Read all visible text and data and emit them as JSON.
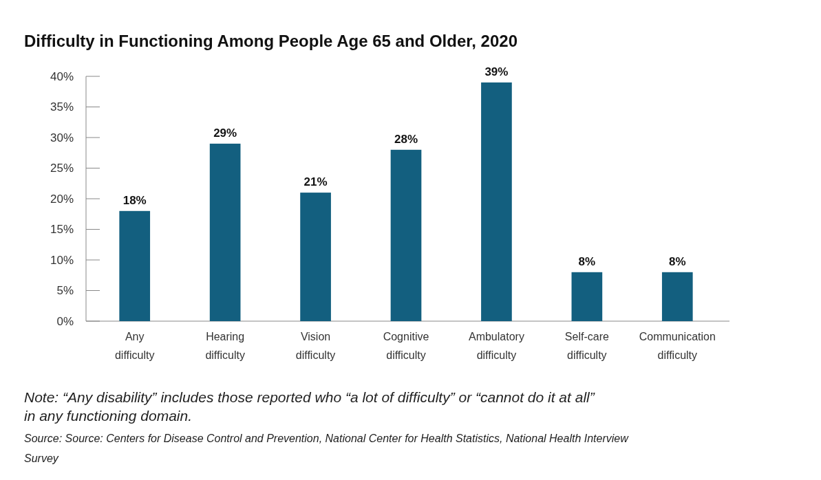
{
  "chart_data": {
    "type": "bar",
    "title": "Difficulty in Functioning Among People Age 65 and Older, 2020",
    "categories": [
      "Any difficulty",
      "Hearing difficulty",
      "Vision difficulty",
      "Cognitive difficulty",
      "Ambulatory difficulty",
      "Self-care difficulty",
      "Communication difficulty"
    ],
    "values": [
      18,
      29,
      21,
      28,
      39,
      8,
      8
    ],
    "color": "#135f7f",
    "value_labels": [
      "18%",
      "29%",
      "21%",
      "28%",
      "39%",
      "8%",
      "8%"
    ],
    "ylim": [
      0,
      40
    ],
    "yticks": [
      {
        "value": 0,
        "label": "0%"
      },
      {
        "value": 5,
        "label": "5%"
      },
      {
        "value": 10,
        "label": "10%"
      },
      {
        "value": 15,
        "label": "15%"
      },
      {
        "value": 20,
        "label": "20%"
      },
      {
        "value": 25,
        "label": "25%"
      },
      {
        "value": 30,
        "label": "30%"
      },
      {
        "value": 35,
        "label": "35%"
      },
      {
        "value": 40,
        "label": "40%"
      }
    ],
    "grid": false,
    "annotations": [
      "Note: “Any disability” includes those reported who “a lot of difficulty” or “cannot do it at all” in any functioning domain.",
      "Source: Source: Centers for Disease Control and Prevention, National Center for Health Statistics, National Health Interview Survey"
    ]
  }
}
